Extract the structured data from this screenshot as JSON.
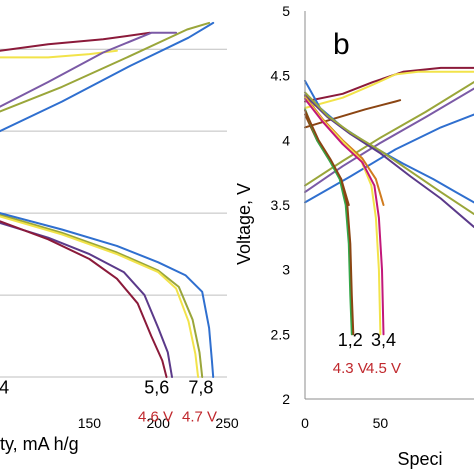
{
  "chart_data": [
    {
      "panel": "a",
      "type": "line",
      "xlabel": "Specific capacity, mA h/g",
      "ylabel": "",
      "xlim": [
        85,
        250
      ],
      "ylim": [
        2,
        4.8
      ],
      "xticks": [
        150,
        200,
        250
      ],
      "gridlines_y": [
        2.5,
        3.0,
        3.5,
        4.0,
        4.5
      ],
      "grid": "horizontal",
      "annotations": [
        {
          "text": "4",
          "x": 88,
          "y": 2.4,
          "color": "#000000"
        },
        {
          "text": "5,6",
          "x": 199,
          "y": 2.4,
          "color": "#000000"
        },
        {
          "text": "7,8",
          "x": 231,
          "y": 2.4,
          "color": "#000000"
        },
        {
          "text": "4.6 V",
          "x": 198,
          "y": 2.23,
          "color": "#c0282d"
        },
        {
          "text": "4.7 V",
          "x": 230,
          "y": 2.23,
          "color": "#c0282d"
        }
      ],
      "series": [
        {
          "color": "#8b1a3a",
          "points": [
            [
              85,
              4.49
            ],
            [
              120,
              4.53
            ],
            [
              160,
              4.56
            ],
            [
              194,
              4.6
            ]
          ]
        },
        {
          "color": "#f2e34a",
          "points": [
            [
              85,
              4.45
            ],
            [
              120,
              4.45
            ],
            [
              150,
              4.47
            ],
            [
              170,
              4.49
            ]
          ]
        },
        {
          "color": "#7b5aa6",
          "points": [
            [
              85,
              4.15
            ],
            [
              120,
              4.3
            ],
            [
              160,
              4.48
            ],
            [
              195,
              4.6
            ],
            [
              213,
              4.6
            ]
          ]
        },
        {
          "color": "#9aa63a",
          "points": [
            [
              85,
              4.12
            ],
            [
              130,
              4.27
            ],
            [
              180,
              4.46
            ],
            [
              221,
              4.62
            ],
            [
              237,
              4.66
            ]
          ]
        },
        {
          "color": "#2f6fcf",
          "points": [
            [
              85,
              4.0
            ],
            [
              130,
              4.18
            ],
            [
              180,
              4.4
            ],
            [
              222,
              4.57
            ],
            [
              240,
              4.66
            ]
          ]
        },
        {
          "color": "#5b3a8a",
          "points": [
            [
              85,
              3.44
            ],
            [
              120,
              3.35
            ],
            [
              150,
              3.25
            ],
            [
              175,
              3.14
            ],
            [
              190,
              3.0
            ],
            [
              200,
              2.8
            ],
            [
              207,
              2.65
            ],
            [
              210,
              2.5
            ]
          ]
        },
        {
          "color": "#8b1a3a",
          "points": [
            [
              85,
              3.45
            ],
            [
              120,
              3.34
            ],
            [
              150,
              3.22
            ],
            [
              170,
              3.1
            ],
            [
              185,
              2.95
            ],
            [
              195,
              2.75
            ],
            [
              203,
              2.6
            ],
            [
              206,
              2.5
            ]
          ]
        },
        {
          "color": "#9aa63a",
          "points": [
            [
              85,
              3.49
            ],
            [
              130,
              3.38
            ],
            [
              170,
              3.26
            ],
            [
              200,
              3.15
            ],
            [
              215,
              3.05
            ],
            [
              225,
              2.85
            ],
            [
              230,
              2.65
            ],
            [
              232,
              2.5
            ]
          ]
        },
        {
          "color": "#f2e34a",
          "points": [
            [
              85,
              3.48
            ],
            [
              130,
              3.37
            ],
            [
              170,
              3.25
            ],
            [
              200,
              3.14
            ],
            [
              213,
              3.04
            ],
            [
              222,
              2.84
            ],
            [
              227,
              2.64
            ],
            [
              229,
              2.5
            ]
          ]
        },
        {
          "color": "#2f6fcf",
          "points": [
            [
              85,
              3.5
            ],
            [
              130,
              3.4
            ],
            [
              170,
              3.3
            ],
            [
              200,
              3.2
            ],
            [
              220,
              3.12
            ],
            [
              232,
              3.02
            ],
            [
              237,
              2.8
            ],
            [
              239,
              2.6
            ],
            [
              240,
              2.5
            ]
          ]
        }
      ]
    },
    {
      "panel": "b",
      "type": "line",
      "xlabel": "Specific capacity, mA h/g",
      "ylabel": "Voltage, V",
      "xlim": [
        0,
        112
      ],
      "ylim": [
        2,
        5
      ],
      "yticks": [
        2,
        2.5,
        3,
        3.5,
        4,
        4.5,
        5
      ],
      "xticks": [
        0,
        50
      ],
      "grid": "none",
      "annotations": [
        {
          "text": "1,2",
          "x": 30,
          "y": 2.41,
          "color": "#000000"
        },
        {
          "text": "3,4",
          "x": 52,
          "y": 2.41,
          "color": "#000000"
        },
        {
          "text": "4.3 V",
          "x": 30,
          "y": 2.2,
          "color": "#c0282d"
        },
        {
          "text": "4.5 V",
          "x": 52,
          "y": 2.2,
          "color": "#c0282d"
        }
      ],
      "series": [
        {
          "color": "#8b1a3a",
          "points": [
            [
              0,
              4.3
            ],
            [
              25,
              4.36
            ],
            [
              45,
              4.45
            ],
            [
              65,
              4.53
            ],
            [
              90,
              4.56
            ],
            [
              112,
              4.56
            ]
          ]
        },
        {
          "color": "#f2e34a",
          "points": [
            [
              0,
              4.25
            ],
            [
              25,
              4.33
            ],
            [
              45,
              4.43
            ],
            [
              60,
              4.51
            ],
            [
              75,
              4.53
            ],
            [
              112,
              4.53
            ]
          ]
        },
        {
          "color": "#8b4513",
          "points": [
            [
              0,
              4.1
            ],
            [
              20,
              4.17
            ],
            [
              40,
              4.24
            ],
            [
              60,
              4.3
            ],
            [
              63,
              4.31
            ]
          ]
        },
        {
          "color": "#7b5aa6",
          "points": [
            [
              0,
              3.6
            ],
            [
              25,
              3.8
            ],
            [
              50,
              3.98
            ],
            [
              80,
              4.18
            ],
            [
              112,
              4.4
            ]
          ]
        },
        {
          "color": "#9aa63a",
          "points": [
            [
              0,
              3.65
            ],
            [
              25,
              3.84
            ],
            [
              50,
              4.02
            ],
            [
              80,
              4.22
            ],
            [
              112,
              4.45
            ]
          ]
        },
        {
          "color": "#2f6fcf",
          "points": [
            [
              0,
              3.52
            ],
            [
              30,
              3.72
            ],
            [
              60,
              3.93
            ],
            [
              90,
              4.1
            ],
            [
              112,
              4.2
            ]
          ]
        },
        {
          "color": "#2f6fcf",
          "points": [
            [
              0,
              4.46
            ],
            [
              10,
              4.25
            ],
            [
              25,
              4.1
            ],
            [
              45,
              3.95
            ],
            [
              65,
              3.82
            ],
            [
              85,
              3.7
            ],
            [
              100,
              3.6
            ],
            [
              112,
              3.52
            ]
          ]
        },
        {
          "color": "#5b3a8a",
          "points": [
            [
              0,
              4.35
            ],
            [
              15,
              4.18
            ],
            [
              30,
              4.05
            ],
            [
              50,
              3.9
            ],
            [
              70,
              3.72
            ],
            [
              90,
              3.55
            ],
            [
              112,
              3.33
            ]
          ]
        },
        {
          "color": "#9aa63a",
          "points": [
            [
              0,
              4.37
            ],
            [
              15,
              4.19
            ],
            [
              30,
              4.06
            ],
            [
              50,
              3.92
            ],
            [
              70,
              3.76
            ],
            [
              90,
              3.6
            ],
            [
              112,
              3.43
            ]
          ]
        },
        {
          "color": "#d07b1e",
          "points": [
            [
              0,
              4.34
            ],
            [
              12,
              4.16
            ],
            [
              25,
              4.0
            ],
            [
              38,
              3.86
            ],
            [
              47,
              3.7
            ],
            [
              52,
              3.5
            ]
          ]
        },
        {
          "color": "#8b4513",
          "points": [
            [
              0,
              4.2
            ],
            [
              8,
              4.0
            ],
            [
              16,
              3.85
            ],
            [
              24,
              3.7
            ],
            [
              29,
              3.5
            ]
          ]
        },
        {
          "color": "#f2e34a",
          "points": [
            [
              0,
              4.33
            ],
            [
              12,
              4.15
            ],
            [
              25,
              3.99
            ],
            [
              37,
              3.85
            ],
            [
              44,
              3.65
            ],
            [
              47,
              3.4
            ],
            [
              49,
              3.0
            ],
            [
              50,
              2.5
            ]
          ]
        },
        {
          "color": "#c2187a",
          "points": [
            [
              0,
              4.32
            ],
            [
              12,
              4.14
            ],
            [
              25,
              3.97
            ],
            [
              38,
              3.83
            ],
            [
              46,
              3.65
            ],
            [
              49,
              3.4
            ],
            [
              51,
              3.0
            ],
            [
              52,
              2.5
            ]
          ]
        },
        {
          "color": "#34a84a",
          "points": [
            [
              0,
              4.24
            ],
            [
              8,
              4.0
            ],
            [
              16,
              3.85
            ],
            [
              23,
              3.7
            ],
            [
              27,
              3.5
            ],
            [
              29,
              3.2
            ],
            [
              30,
              2.8
            ],
            [
              31,
              2.5
            ]
          ]
        },
        {
          "color": "#8b4513",
          "points": [
            [
              0,
              4.23
            ],
            [
              9,
              4.0
            ],
            [
              17,
              3.85
            ],
            [
              24,
              3.7
            ],
            [
              28,
              3.5
            ],
            [
              30,
              3.2
            ],
            [
              31,
              2.8
            ],
            [
              32,
              2.5
            ]
          ]
        }
      ]
    }
  ],
  "text": {
    "a_xlabel_visible": "ty, mA h/g",
    "b_xlabel_visible": "Speci",
    "b_ylabel": "Voltage, V",
    "b_letter": "b"
  }
}
